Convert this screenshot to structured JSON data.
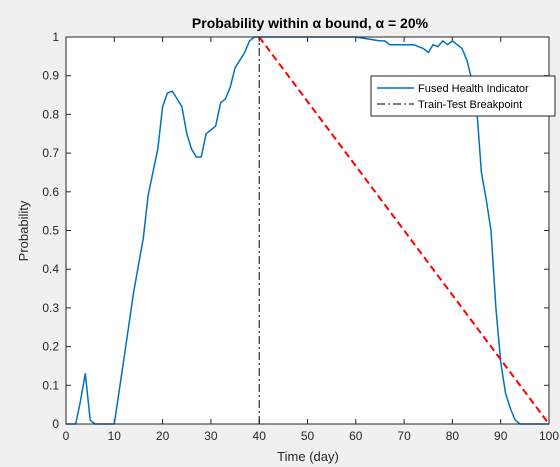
{
  "chart_data": {
    "type": "line",
    "title": "Probability within α bound, α = 20%",
    "xlabel": "Time (day)",
    "ylabel": "Probability",
    "xlim": [
      0,
      100
    ],
    "ylim": [
      0,
      1
    ],
    "xticks": [
      0,
      10,
      20,
      30,
      40,
      50,
      60,
      70,
      80,
      90,
      100
    ],
    "yticks": [
      0,
      0.1,
      0.2,
      0.3,
      0.4,
      0.5,
      0.6,
      0.7,
      0.8,
      0.9,
      1
    ],
    "legend": "top-right",
    "grid": false,
    "series": [
      {
        "name": "Fused Health Indicator",
        "color": "#0072bd",
        "style": "solid",
        "x": [
          0,
          2,
          3,
          4,
          5,
          6,
          10,
          12,
          14,
          16,
          17,
          18,
          19,
          20,
          21,
          22,
          23,
          24,
          25,
          26,
          27,
          28,
          29,
          30,
          31,
          32,
          33,
          34,
          35,
          36,
          37,
          38,
          39,
          40,
          45,
          50,
          55,
          60,
          65,
          66,
          67,
          68,
          69,
          70,
          71,
          72,
          73,
          74,
          75,
          76,
          77,
          78,
          79,
          80,
          81,
          82,
          83,
          84,
          85,
          86,
          87,
          88,
          89,
          90,
          91,
          92,
          93,
          94,
          95,
          96,
          98,
          100
        ],
        "y": [
          0,
          0,
          0.06,
          0.13,
          0.01,
          0,
          0,
          0.17,
          0.34,
          0.48,
          0.59,
          0.65,
          0.71,
          0.82,
          0.855,
          0.86,
          0.84,
          0.82,
          0.75,
          0.71,
          0.69,
          0.69,
          0.75,
          0.76,
          0.77,
          0.83,
          0.84,
          0.87,
          0.92,
          0.94,
          0.96,
          0.99,
          1.0,
          1.0,
          1.0,
          1.0,
          1.0,
          1.0,
          0.99,
          0.99,
          0.98,
          0.98,
          0.98,
          0.98,
          0.98,
          0.98,
          0.975,
          0.97,
          0.96,
          0.98,
          0.975,
          0.99,
          0.98,
          0.99,
          0.98,
          0.97,
          0.94,
          0.89,
          0.82,
          0.65,
          0.58,
          0.5,
          0.3,
          0.16,
          0.08,
          0.04,
          0.01,
          0,
          0,
          0,
          0,
          0
        ]
      },
      {
        "name": "Train-Test Breakpoint",
        "color": "#000000",
        "style": "dashdot",
        "x": [
          40,
          40
        ],
        "y": [
          0,
          1
        ]
      },
      {
        "name": "",
        "color": "#ff0000",
        "style": "dashed",
        "x": [
          40,
          100
        ],
        "y": [
          1,
          0
        ]
      }
    ]
  }
}
